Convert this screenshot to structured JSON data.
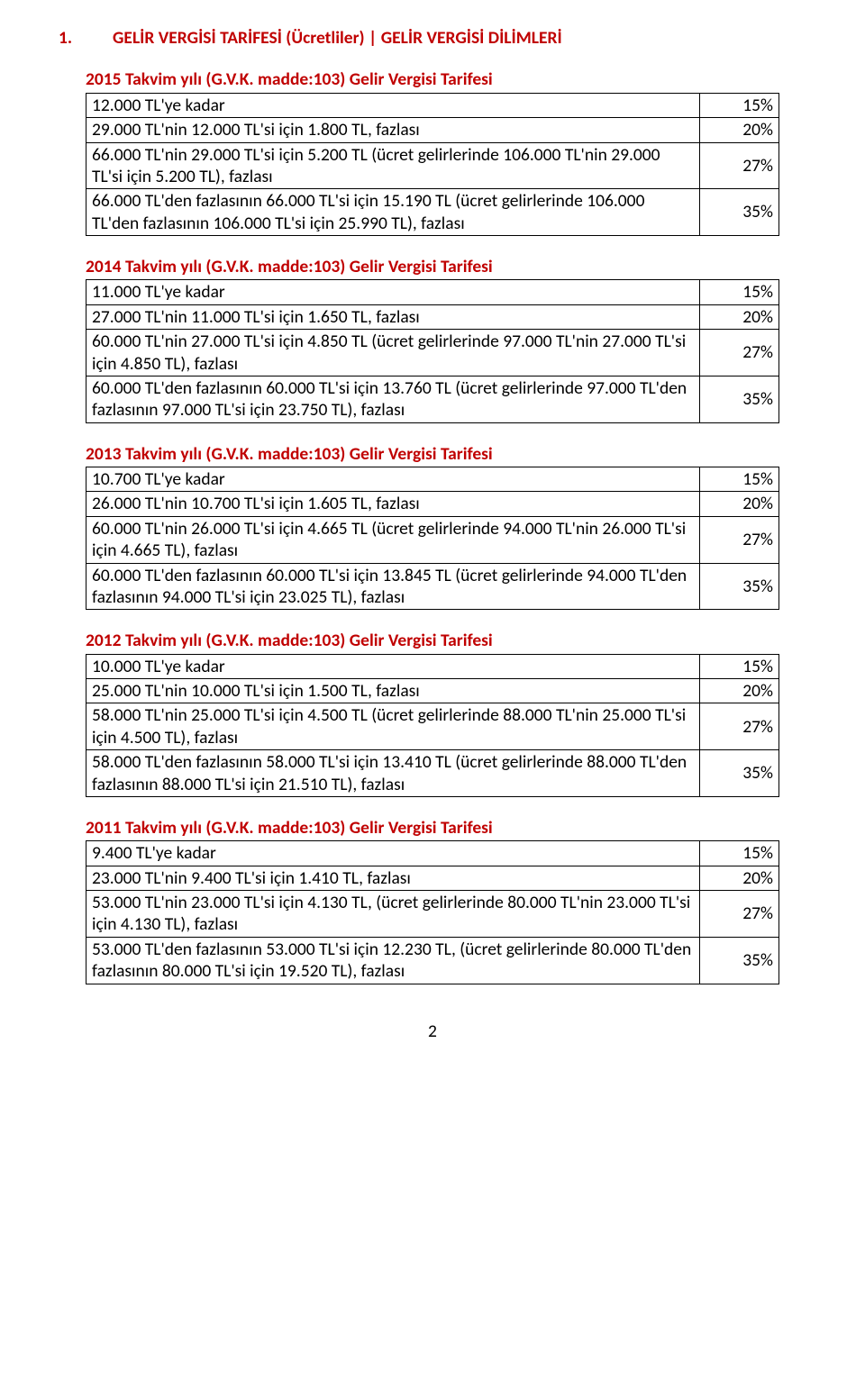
{
  "colors": {
    "heading": "#c00000",
    "text": "#000000",
    "border": "#000000",
    "background": "#ffffff"
  },
  "typography": {
    "font_family": "Calibri",
    "font_size_pt": 11,
    "heading_weight": "bold"
  },
  "main_title_number": "1.",
  "main_title": "GELİR VERGİSİ TARİFESİ (Ücretliler) | GELİR VERGİSİ DİLİMLERİ",
  "sections": [
    {
      "title": "2015 Takvim yılı (G.V.K. madde:103) Gelir Vergisi Tarifesi",
      "rows": [
        {
          "desc": "12.000 TL'ye kadar",
          "rate": "15%"
        },
        {
          "desc": "29.000 TL'nin 12.000 TL'si için 1.800 TL, fazlası",
          "rate": "20%"
        },
        {
          "desc": "66.000 TL'nin 29.000 TL'si için 5.200 TL (ücret gelirlerinde 106.000 TL'nin 29.000 TL'si için 5.200 TL), fazlası",
          "rate": "27%"
        },
        {
          "desc": "66.000 TL'den fazlasının 66.000 TL'si için 15.190 TL (ücret gelirlerinde 106.000 TL'den fazlasının 106.000 TL'si için 25.990 TL), fazlası",
          "rate": "35%"
        }
      ]
    },
    {
      "title": "2014 Takvim yılı (G.V.K. madde:103) Gelir Vergisi Tarifesi",
      "rows": [
        {
          "desc": "11.000 TL'ye kadar",
          "rate": "15%"
        },
        {
          "desc": "27.000 TL'nin 11.000 TL'si için 1.650 TL, fazlası",
          "rate": "20%"
        },
        {
          "desc": "60.000 TL'nin 27.000 TL'si için 4.850 TL (ücret gelirlerinde 97.000 TL'nin 27.000 TL'si için 4.850 TL), fazlası",
          "rate": "27%"
        },
        {
          "desc": "60.000 TL'den fazlasının 60.000 TL'si için 13.760 TL (ücret gelirlerinde 97.000 TL'den fazlasının 97.000 TL'si için 23.750 TL), fazlası",
          "rate": "35%"
        }
      ]
    },
    {
      "title": "2013 Takvim yılı (G.V.K. madde:103) Gelir Vergisi Tarifesi",
      "rows": [
        {
          "desc": "10.700 TL'ye kadar",
          "rate": "15%"
        },
        {
          "desc": "26.000 TL'nin 10.700 TL'si için 1.605 TL, fazlası",
          "rate": "20%"
        },
        {
          "desc": "60.000 TL'nin 26.000 TL'si için 4.665 TL (ücret gelirlerinde 94.000 TL'nin 26.000 TL'si için 4.665 TL), fazlası",
          "rate": "27%"
        },
        {
          "desc": "60.000 TL'den fazlasının 60.000 TL'si için 13.845 TL (ücret gelirlerinde 94.000 TL'den fazlasının 94.000 TL'si için 23.025 TL), fazlası",
          "rate": "35%"
        }
      ]
    },
    {
      "title": "2012 Takvim yılı (G.V.K. madde:103) Gelir Vergisi Tarifesi",
      "rows": [
        {
          "desc": "10.000 TL'ye kadar",
          "rate": "15%"
        },
        {
          "desc": "25.000 TL'nin 10.000 TL'si için 1.500 TL, fazlası",
          "rate": "20%"
        },
        {
          "desc": "58.000 TL'nin 25.000 TL'si için 4.500 TL (ücret gelirlerinde 88.000 TL'nin 25.000 TL'si için 4.500 TL), fazlası",
          "rate": "27%"
        },
        {
          "desc": "58.000 TL'den fazlasının 58.000 TL'si için 13.410 TL (ücret gelirlerinde 88.000 TL'den fazlasının 88.000 TL'si için 21.510 TL), fazlası",
          "rate": "35%"
        }
      ]
    },
    {
      "title": "2011 Takvim yılı (G.V.K. madde:103) Gelir Vergisi Tarifesi",
      "rows": [
        {
          "desc": "9.400 TL'ye kadar",
          "rate": "15%"
        },
        {
          "desc": "23.000 TL'nin 9.400 TL'si için 1.410 TL, fazlası",
          "rate": "20%"
        },
        {
          "desc": "53.000 TL'nin 23.000 TL'si için 4.130 TL, (ücret gelirlerinde 80.000 TL'nin 23.000 TL'si için 4.130 TL), fazlası",
          "rate": "27%"
        },
        {
          "desc": "53.000 TL'den fazlasının 53.000 TL'si için 12.230 TL, (ücret gelirlerinde 80.000 TL'den fazlasının 80.000 TL'si için 19.520 TL), fazlası",
          "rate": "35%"
        }
      ]
    }
  ],
  "page_number": "2"
}
